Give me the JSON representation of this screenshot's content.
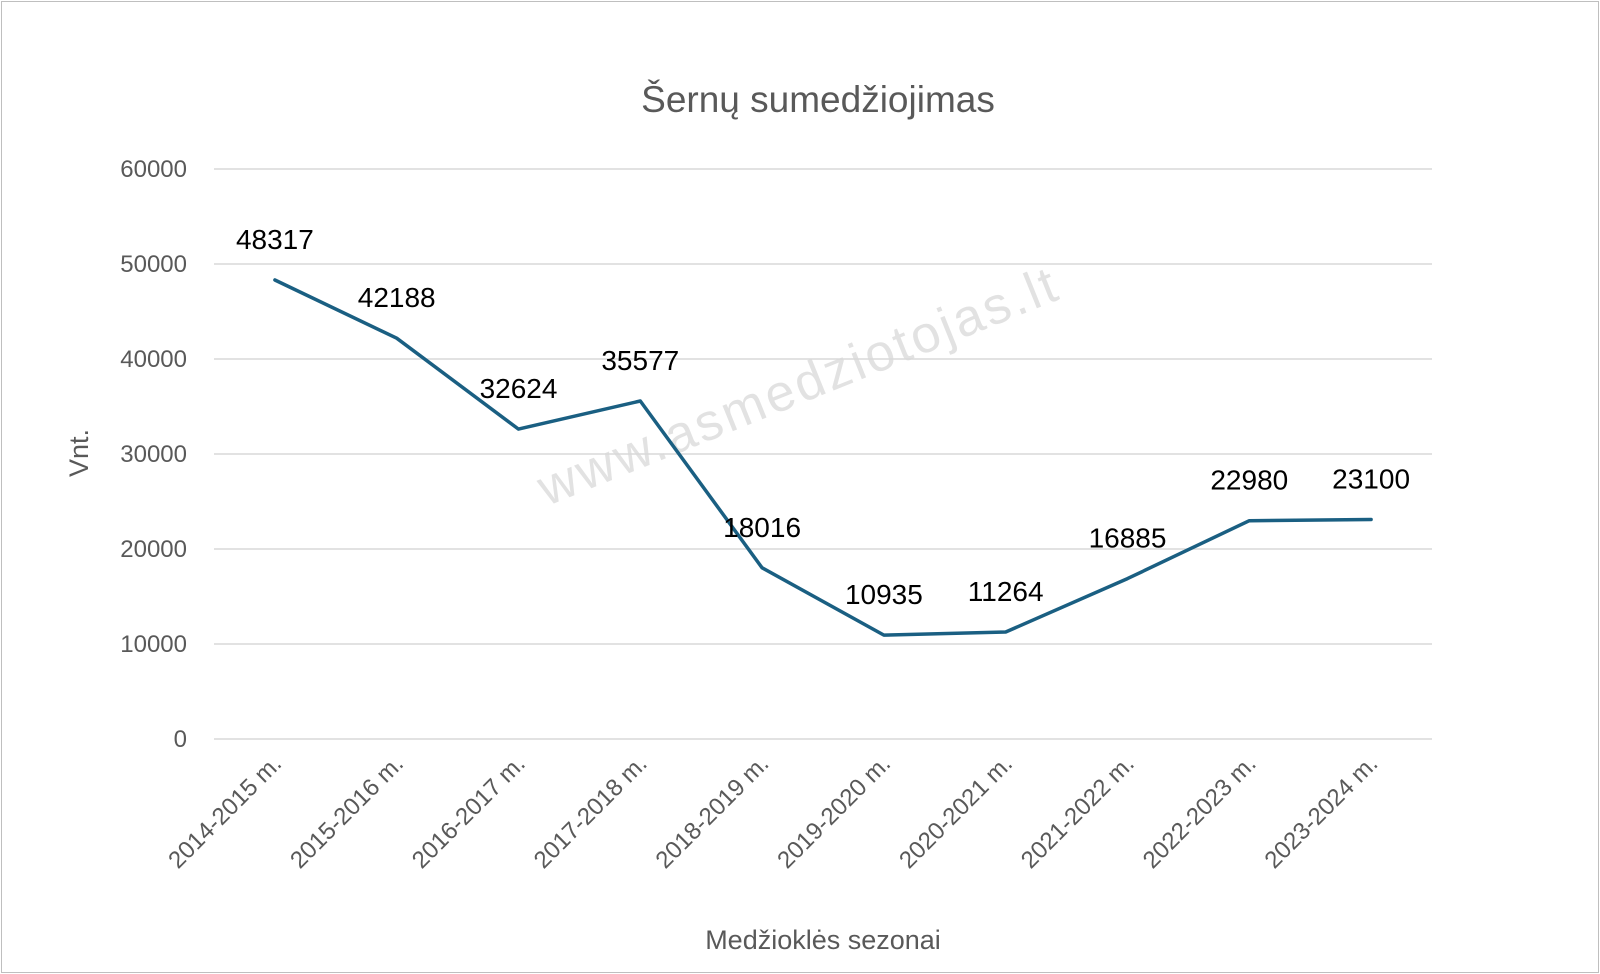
{
  "chart_data": {
    "type": "line",
    "title": "Šernų sumedžiojimas",
    "xlabel": "Medžioklės sezonai",
    "ylabel": "Vnt.",
    "ylim": [
      0,
      60000
    ],
    "yticks": [
      "0",
      "10000",
      "20000",
      "30000",
      "40000",
      "50000",
      "60000"
    ],
    "categories": [
      "2014-2015 m.",
      "2015-2016 m.",
      "2016-2017 m.",
      "2017-2018 m.",
      "2018-2019 m.",
      "2019-2020 m.",
      "2020-2021 m.",
      "2021-2022 m.",
      "2022-2023 m.",
      "2023-2024 m."
    ],
    "series": [
      {
        "values": [
          48317,
          42188,
          32624,
          35577,
          18016,
          10935,
          11264,
          16885,
          22980,
          23100
        ],
        "color": "#1a5f82"
      }
    ],
    "grid": true,
    "legend": "none"
  },
  "watermark": "www.asmedziotojas.lt"
}
